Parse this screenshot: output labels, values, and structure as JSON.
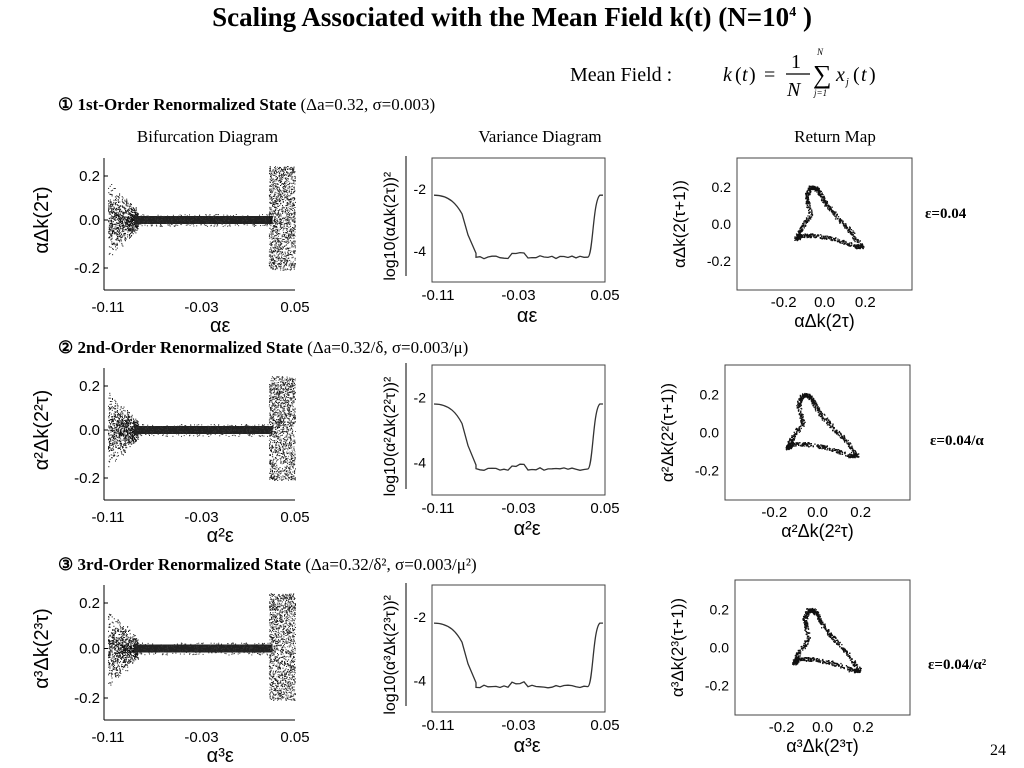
{
  "slide": {
    "title": "Scaling Associated with the Mean Field k(t) (N=10",
    "title_exp": "4",
    "title_end": " )",
    "formula_label": "Mean Field :",
    "page_number": "24"
  },
  "columns": [
    "Bifurcation Diagram",
    "Variance Diagram",
    "Return Map"
  ],
  "sections": [
    {
      "marker": "①",
      "name": "1st-Order Renormalized State",
      "params": "(Δa=0.32, σ=0.003)",
      "eps": "ε=0.04",
      "bif": {
        "ylabel": "αΔk(2τ)",
        "xlabel": "αε",
        "xticks": [
          "-0.11",
          "-0.03",
          "0.05"
        ],
        "yticks": [
          "0.2",
          "0.0",
          "-0.2"
        ]
      },
      "var": {
        "ylabel": "log10(αΔk(2τ))²",
        "xlabel": "αε",
        "xticks": [
          "-0.11",
          "-0.03",
          "0.05"
        ],
        "yticks": [
          "-2",
          "-4"
        ]
      },
      "ret": {
        "ylabel": "αΔk(2(τ+1))",
        "xlabel": "αΔk(2τ)",
        "xticks": [
          "-0.2",
          "0.0",
          "0.2"
        ],
        "yticks": [
          "0.2",
          "0.0",
          "-0.2"
        ]
      }
    },
    {
      "marker": "②",
      "name": "2nd-Order Renormalized State",
      "params": "(Δa=0.32/δ, σ=0.003/μ)",
      "eps": "ε=0.04/α",
      "bif": {
        "ylabel": "α²Δk(2²τ)",
        "xlabel": "α²ε",
        "xticks": [
          "-0.11",
          "-0.03",
          "0.05"
        ],
        "yticks": [
          "0.2",
          "0.0",
          "-0.2"
        ]
      },
      "var": {
        "ylabel": "log10(α²Δk(2²τ))²",
        "xlabel": "α²ε",
        "xticks": [
          "-0.11",
          "-0.03",
          "0.05"
        ],
        "yticks": [
          "-2",
          "-4"
        ]
      },
      "ret": {
        "ylabel": "α²Δk(2²(τ+1))",
        "xlabel": "α²Δk(2²τ)",
        "xticks": [
          "-0.2",
          "0.0",
          "0.2"
        ],
        "yticks": [
          "0.2",
          "0.0",
          "-0.2"
        ]
      }
    },
    {
      "marker": "③",
      "name": "3rd-Order Renormalized State",
      "params": "(Δa=0.32/δ², σ=0.003/μ²)",
      "eps": "ε=0.04/α²",
      "bif": {
        "ylabel": "α³Δk(2³τ)",
        "xlabel": "α³ε",
        "xticks": [
          "-0.11",
          "-0.03",
          "0.05"
        ],
        "yticks": [
          "0.2",
          "0.0",
          "-0.2"
        ]
      },
      "var": {
        "ylabel": "log10(α³Δk(2³τ))²",
        "xlabel": "α³ε",
        "xticks": [
          "-0.11",
          "-0.03",
          "0.05"
        ],
        "yticks": [
          "-2",
          "-4"
        ]
      },
      "ret": {
        "ylabel": "α³Δk(2³(τ+1))",
        "xlabel": "α³Δk(2³τ)",
        "xticks": [
          "-0.2",
          "0.0",
          "0.2"
        ],
        "yticks": [
          "0.2",
          "0.0",
          "-0.2"
        ]
      }
    }
  ]
}
